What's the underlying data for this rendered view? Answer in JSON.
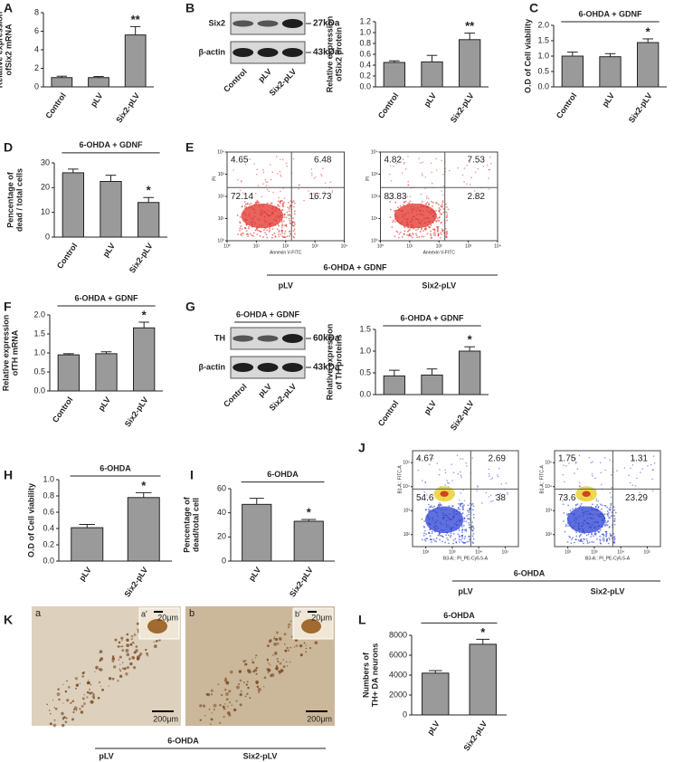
{
  "chart_data": [
    {
      "type": "bar",
      "panel": "A",
      "ylabel": [
        "Relative expression",
        "ofSix2 mRNA"
      ],
      "categories": [
        "Control",
        "pLV",
        "Six2-pLV"
      ],
      "values": [
        1.0,
        1.0,
        5.6
      ],
      "errors": [
        0.15,
        0.12,
        0.9
      ],
      "ylim": [
        0,
        8
      ],
      "yticks": [
        0,
        2,
        4,
        6,
        8
      ],
      "significance": "**",
      "color": "#9a9a9a"
    },
    {
      "type": "blot",
      "panel": "B",
      "rows": [
        {
          "label": "Six2",
          "kda": "27kDa"
        },
        {
          "label": "β-actin",
          "kda": "43kDa"
        }
      ],
      "categories": [
        "Control",
        "pLV",
        "Six2-pLV"
      ]
    },
    {
      "type": "bar",
      "ylabel": [
        "Relative expression",
        "ofSix2 protein"
      ],
      "categories": [
        "Control",
        "pLV",
        "Six2-pLV"
      ],
      "values": [
        0.45,
        0.46,
        0.87
      ],
      "errors": [
        0.03,
        0.12,
        0.12
      ],
      "ylim": [
        0,
        1.2
      ],
      "yticks": [
        {
          "value": 0,
          "label": "0.0"
        },
        0.2,
        0.4,
        0.6,
        0.8,
        {
          "value": 1,
          "label": "1.0"
        },
        1.2
      ],
      "significance": "**",
      "color": "#9a9a9a"
    },
    {
      "type": "bar",
      "panel": "C",
      "bracket": "6-OHDA + GDNF",
      "ylabel": [
        "O.D of Cell viability"
      ],
      "categories": [
        "Control",
        "pLV",
        "Six2-pLV"
      ],
      "values": [
        1.0,
        0.98,
        1.44
      ],
      "errors": [
        0.13,
        0.1,
        0.12
      ],
      "ylim": [
        0,
        2
      ],
      "yticks": [
        {
          "value": 0,
          "label": "0.0"
        },
        0.5,
        {
          "value": 1,
          "label": "1.0"
        },
        1.5,
        {
          "value": 2,
          "label": "2.0"
        }
      ],
      "significance": "*",
      "color": "#9a9a9a"
    },
    {
      "type": "bar",
      "panel": "D",
      "bracket": "6-OHDA + GDNF",
      "ylabel": [
        "Pencentage of",
        "dead / total cells"
      ],
      "categories": [
        "Control",
        "pLV",
        "Six2-pLV"
      ],
      "values": [
        26,
        22.5,
        14
      ],
      "errors": [
        1.5,
        2.5,
        2
      ],
      "ylim": [
        0,
        30
      ],
      "yticks": [
        0,
        10,
        20,
        30
      ],
      "significance": "*",
      "color": "#9a9a9a"
    },
    {
      "type": "flow",
      "panel": "E",
      "bracket": "6-OHDA + GDNF",
      "categories": [
        "pLV",
        "Six2-pLV"
      ],
      "xlabel": "Annexin V-FITC",
      "ylabel": "PI",
      "color": "#e0302a",
      "xlim": [
        0,
        4
      ],
      "ylim": [
        0,
        4
      ],
      "xticks": [
        {
          "value": 0,
          "label": "10⁰"
        },
        {
          "value": 1,
          "label": "10¹"
        },
        {
          "value": 2,
          "label": "10²"
        },
        {
          "value": 3,
          "label": "10³"
        },
        {
          "value": 4,
          "label": "10⁴"
        }
      ],
      "yticks": [
        {
          "value": 0,
          "label": "10⁰"
        },
        {
          "value": 1,
          "label": "10¹"
        },
        {
          "value": 2,
          "label": "10²"
        },
        {
          "value": 3,
          "label": "10³"
        },
        {
          "value": 4,
          "label": "10⁴"
        }
      ],
      "plots": [
        {
          "quadrants": [
            4.65,
            6.48,
            72.14,
            16.73
          ]
        },
        {
          "quadrants": [
            4.82,
            7.53,
            83.83,
            2.82
          ]
        }
      ]
    },
    {
      "type": "bar",
      "panel": "F",
      "bracket": "6-OHDA + GDNF",
      "ylabel": [
        "Relative expression",
        "ofTH mRNA"
      ],
      "categories": [
        "Control",
        "pLV",
        "Six2-pLV"
      ],
      "values": [
        0.95,
        0.98,
        1.66
      ],
      "errors": [
        0.03,
        0.05,
        0.15
      ],
      "ylim": [
        0,
        2
      ],
      "yticks": [
        {
          "value": 0,
          "label": "0.0"
        },
        0.5,
        {
          "value": 1,
          "label": "1.0"
        },
        1.5,
        {
          "value": 2,
          "label": "2.0"
        }
      ],
      "significance": "*",
      "color": "#9a9a9a"
    },
    {
      "type": "blot",
      "panel": "G",
      "bracket": "6-OHDA + GDNF",
      "rows": [
        {
          "label": "TH",
          "kda": "60kDa"
        },
        {
          "label": "β-actin",
          "kda": "43kDa"
        }
      ],
      "categories": [
        "Control",
        "pLV",
        "Six2-pLV"
      ]
    },
    {
      "type": "bar",
      "bracket": "6-OHDA + GDNF",
      "ylabel": [
        "Relative expression",
        "of TH proteins"
      ],
      "categories": [
        "Control",
        "pLV",
        "Six2-pLV"
      ],
      "values": [
        0.43,
        0.45,
        1.0
      ],
      "errors": [
        0.13,
        0.14,
        0.1
      ],
      "ylim": [
        0,
        1.5
      ],
      "yticks": [
        {
          "value": 0,
          "label": "0.0"
        },
        0.5,
        {
          "value": 1,
          "label": "1.0"
        },
        1.5
      ],
      "significance": "*",
      "color": "#9a9a9a"
    },
    {
      "type": "bar",
      "panel": "H",
      "bracket": "6-OHDA",
      "ylabel": [
        "O.D of Cell viability"
      ],
      "categories": [
        "pLV",
        "Six2-pLV"
      ],
      "values": [
        0.41,
        0.78
      ],
      "errors": [
        0.04,
        0.06
      ],
      "ylim": [
        0,
        1
      ],
      "yticks": [
        {
          "value": 0,
          "label": "0.0"
        },
        0.2,
        0.4,
        0.6,
        0.8,
        {
          "value": 1,
          "label": "1.0"
        }
      ],
      "significance": "*",
      "color": "#9a9a9a"
    },
    {
      "type": "bar",
      "panel": "I",
      "bracket": "6-OHDA",
      "ylabel": [
        "Pencentage of",
        "dead/total cell"
      ],
      "categories": [
        "pLV",
        "Six2-pLV"
      ],
      "values": [
        47,
        33
      ],
      "errors": [
        5,
        1.5
      ],
      "ylim": [
        0,
        60
      ],
      "yticks": [
        0,
        20,
        40,
        60
      ],
      "significance": "*",
      "color": "#9a9a9a"
    },
    {
      "type": "flow",
      "panel": "J",
      "bracket": "6-OHDA",
      "categories": [
        "pLV",
        "Six2-pLV"
      ],
      "xlabel": "B3-A:: PI_PE-Cy5.5-A",
      "ylabel": "B1-A:: FITC-A",
      "color": "#2a3fd0",
      "xlim": [
        1.5,
        5.5
      ],
      "ylim": [
        1.5,
        5.5
      ],
      "xticks": [
        {
          "value": 2,
          "label": "10²"
        },
        {
          "value": 3,
          "label": "10³"
        },
        {
          "value": 4,
          "label": "10⁴"
        },
        {
          "value": 5,
          "label": "10⁵"
        }
      ],
      "yticks": [
        {
          "value": 2,
          "label": "10²"
        },
        {
          "value": 3,
          "label": "10³"
        },
        {
          "value": 4,
          "label": "10⁴"
        },
        {
          "value": 5,
          "label": "10⁵"
        }
      ],
      "plots": [
        {
          "quadrants": [
            4.67,
            2.69,
            54.6,
            38
          ]
        },
        {
          "quadrants": [
            1.75,
            1.31,
            73.6,
            23.29
          ]
        }
      ]
    },
    {
      "type": "micro",
      "panel": "K",
      "bracket": "6-OHDA",
      "categories": [
        "pLV",
        "Six2-pLV"
      ],
      "images": [
        {
          "label": "a",
          "inset": "a'",
          "scale": "200μm",
          "inset_scale": "20μm"
        },
        {
          "label": "b",
          "inset": "b'",
          "scale": "200μm",
          "inset_scale": "20μm"
        }
      ]
    },
    {
      "type": "bar",
      "panel": "L",
      "bracket": "6-OHDA",
      "ylabel": [
        "Numbers of",
        "TH+ DA neurons"
      ],
      "categories": [
        "pLV",
        "Six2-pLV"
      ],
      "values": [
        4200,
        7100
      ],
      "errors": [
        250,
        500
      ],
      "ylim": [
        0,
        8000
      ],
      "yticks": [
        0,
        2000,
        4000,
        6000,
        8000
      ],
      "significance": "*",
      "color": "#9a9a9a"
    }
  ]
}
